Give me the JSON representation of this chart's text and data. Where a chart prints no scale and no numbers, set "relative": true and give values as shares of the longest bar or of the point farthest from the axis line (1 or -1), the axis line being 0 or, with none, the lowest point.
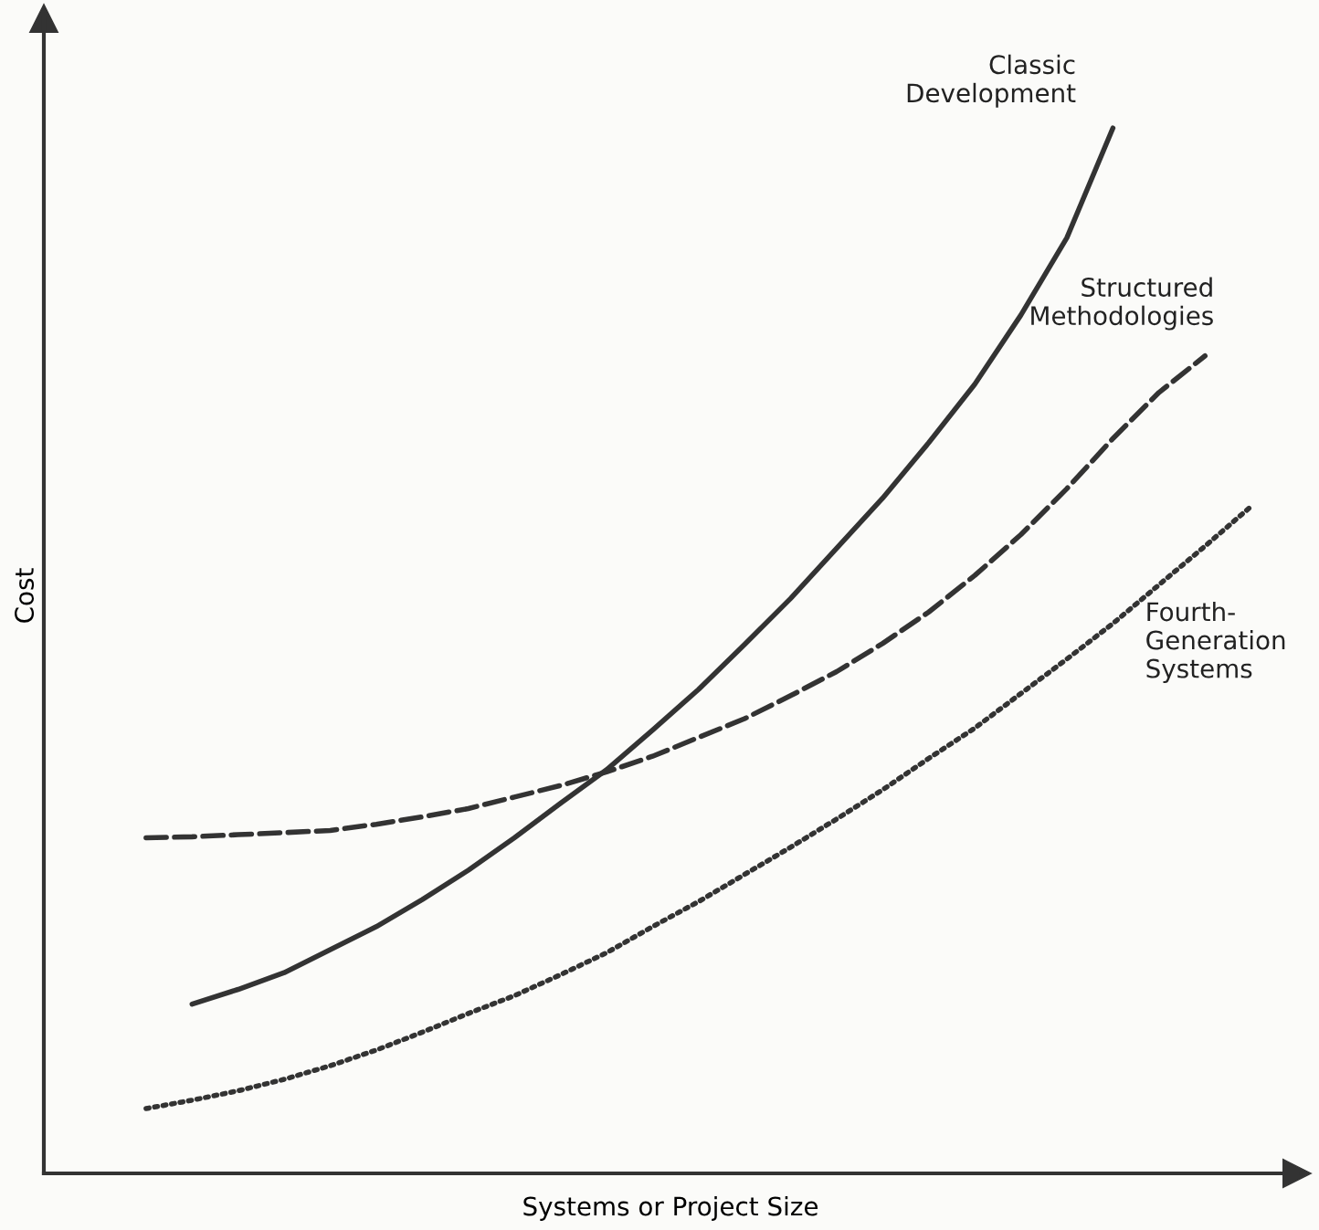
{
  "chart_data": {
    "type": "line",
    "relative": true,
    "xlabel": "Systems or Project Size",
    "ylabel": "Cost",
    "legend": false,
    "marker": "none",
    "categories": [
      null,
      null,
      null,
      null,
      null,
      null,
      null,
      null,
      null,
      null,
      null,
      null,
      null,
      null,
      null,
      null,
      null,
      null,
      null,
      null,
      null,
      null,
      null,
      null,
      null
    ],
    "series": [
      {
        "name": "Classic Development",
        "color": "#333333",
        "line_style": "solid",
        "values": [
          null,
          0.162,
          0.176,
          0.192,
          0.214,
          0.236,
          0.262,
          0.29,
          0.321,
          0.354,
          0.386,
          0.424,
          0.463,
          0.506,
          0.55,
          0.598,
          0.646,
          0.699,
          0.755,
          0.821,
          0.895,
          1.0,
          null,
          null,
          null
        ]
      },
      {
        "name": "Structured Methodologies",
        "color": "#333333",
        "line_style": "dashed",
        "values": [
          0.321,
          0.322,
          0.324,
          0.326,
          0.328,
          0.334,
          0.341,
          0.349,
          0.36,
          0.371,
          0.384,
          0.399,
          0.417,
          0.435,
          0.457,
          0.48,
          0.507,
          0.537,
          0.572,
          0.611,
          0.655,
          0.703,
          0.747,
          0.782,
          null
        ]
      },
      {
        "name": "Fourth-Generation Systems",
        "color": "#333333",
        "line_style": "dotted",
        "values": [
          0.062,
          0.07,
          0.079,
          0.09,
          0.103,
          0.118,
          0.135,
          0.153,
          0.17,
          0.19,
          0.211,
          0.236,
          0.26,
          0.286,
          0.312,
          0.339,
          0.367,
          0.397,
          0.426,
          0.459,
          0.492,
          0.526,
          0.563,
          0.6,
          0.638
        ]
      }
    ]
  }
}
